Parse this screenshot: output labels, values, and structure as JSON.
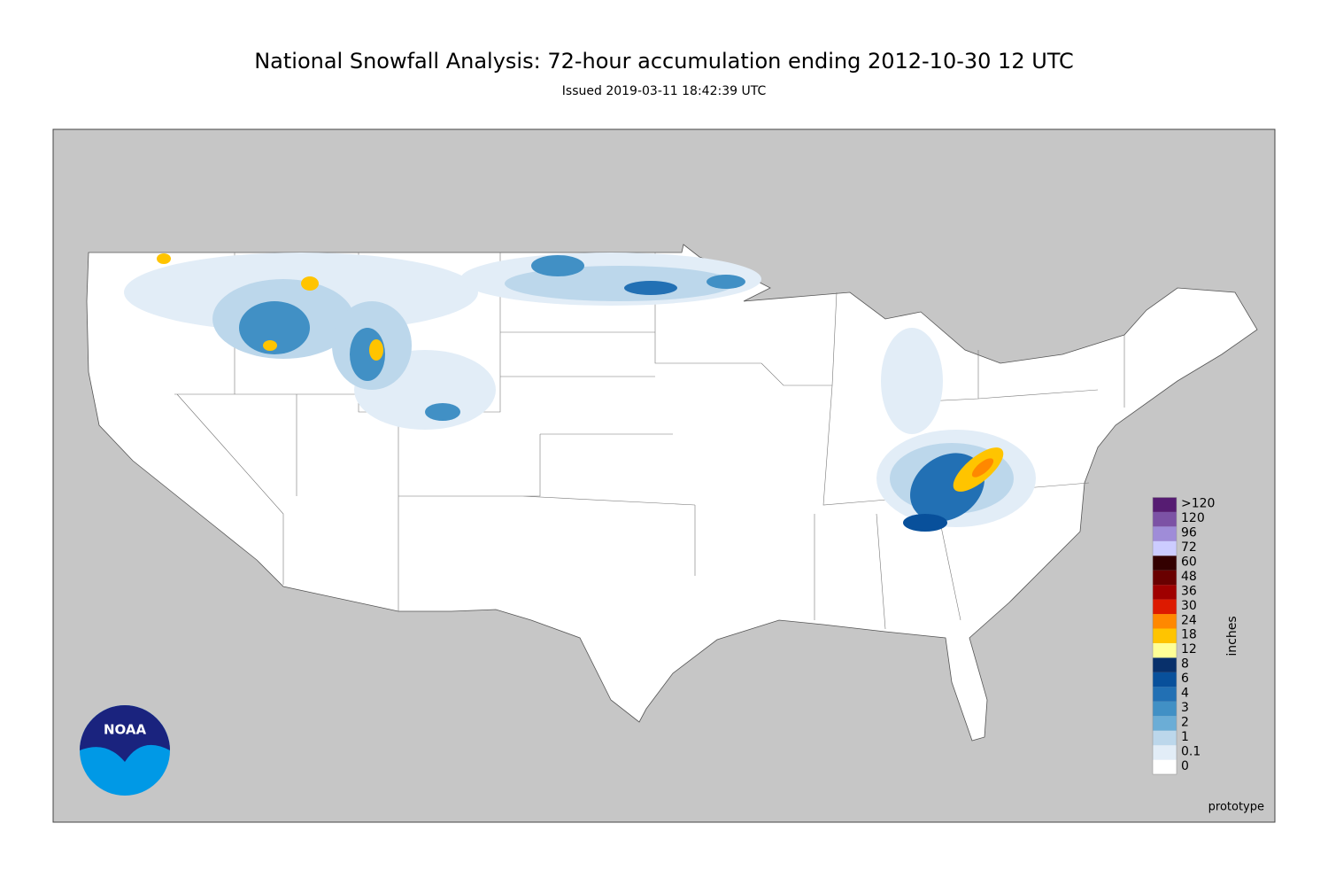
{
  "header": {
    "title": "National Snowfall Analysis: 72-hour accumulation ending 2012-10-30 12 UTC",
    "subtitle": "Issued 2019-03-11 18:42:39 UTC"
  },
  "legend": {
    "title": "inches",
    "items": [
      {
        "label": "0",
        "color": "#ffffff"
      },
      {
        "label": "0.1",
        "color": "#e2edf7"
      },
      {
        "label": "1",
        "color": "#bcd7eb"
      },
      {
        "label": "2",
        "color": "#6badd6"
      },
      {
        "label": "3",
        "color": "#4190c5"
      },
      {
        "label": "4",
        "color": "#2270b4"
      },
      {
        "label": "6",
        "color": "#08509b"
      },
      {
        "label": "8",
        "color": "#08306b"
      },
      {
        "label": "12",
        "color": "#ffff96"
      },
      {
        "label": "18",
        "color": "#ffc400"
      },
      {
        "label": "24",
        "color": "#ff8800"
      },
      {
        "label": "30",
        "color": "#dd1a00"
      },
      {
        "label": "36",
        "color": "#9f0000"
      },
      {
        "label": "48",
        "color": "#690000"
      },
      {
        "label": "60",
        "color": "#330000"
      },
      {
        "label": "72",
        "color": "#ccccff"
      },
      {
        "label": "96",
        "color": "#9f8cd8"
      },
      {
        "label": "120",
        "color": "#7c52a5"
      },
      {
        "label": ">120",
        "color": "#561c72"
      }
    ]
  },
  "note": "prototype",
  "logo": {
    "text": "NOAA"
  }
}
